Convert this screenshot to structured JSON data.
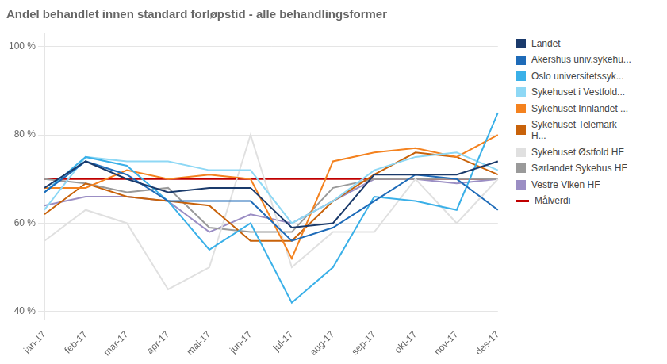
{
  "chart_data": {
    "type": "line",
    "title": "Andel behandlet innen standard forløpstid - alle behandlingsformer",
    "categories": [
      "jan-17",
      "feb-17",
      "mar-17",
      "apr-17",
      "mai-17",
      "jun-17",
      "jul-17",
      "aug-17",
      "sep-17",
      "okt-17",
      "nov-17",
      "des-17"
    ],
    "series": [
      {
        "name": "Landet",
        "color": "#1a3a6b",
        "values": [
          68,
          74,
          70,
          67,
          68,
          68,
          59,
          60,
          71,
          71,
          71,
          74
        ]
      },
      {
        "name": "Akershus univ.sykehu...",
        "color": "#1e6bb8",
        "values": [
          67,
          74,
          71,
          65,
          65,
          65,
          56,
          59,
          65,
          71,
          70,
          63
        ]
      },
      {
        "name": "Oslo universitetssyk...",
        "color": "#3ab0e8",
        "values": [
          67,
          75,
          73,
          65,
          54,
          60,
          42,
          50,
          66,
          65,
          63,
          85
        ]
      },
      {
        "name": "Sykehuset i Vestfold...",
        "color": "#8ed8f5",
        "values": [
          63,
          75,
          74,
          74,
          72,
          72,
          60,
          65,
          72,
          75,
          76,
          72
        ]
      },
      {
        "name": "Sykehuset Innlandet ...",
        "color": "#f4821f",
        "values": [
          68,
          68,
          72,
          70,
          71,
          70,
          52,
          74,
          76,
          77,
          75,
          80
        ]
      },
      {
        "name": "Sykehuset Telemark\nH...",
        "color": "#c8620a",
        "values": [
          62,
          69,
          66,
          65,
          64,
          56,
          56,
          65,
          71,
          76,
          75,
          71
        ]
      },
      {
        "name": "Sykehuset Østfold HF",
        "color": "#e0e0e0",
        "values": [
          56,
          63,
          60,
          45,
          50,
          80,
          50,
          58,
          58,
          70,
          60,
          70
        ]
      },
      {
        "name": "Sørlandet Sykehus HF",
        "color": "#9a9a9a",
        "values": [
          70,
          69,
          67,
          68,
          59,
          58,
          58,
          68,
          70,
          70,
          70,
          70
        ]
      },
      {
        "name": "Vestre Viken HF",
        "color": "#9b8ec4",
        "values": [
          64,
          66,
          66,
          65,
          58,
          62,
          60,
          65,
          70,
          70,
          69,
          70
        ]
      }
    ],
    "target": {
      "name": "Målverdi",
      "value": 70,
      "color": "#c00000"
    },
    "ylim": [
      38,
      103
    ],
    "yticks": [
      {
        "value": 40,
        "label": "40 %"
      },
      {
        "value": 60,
        "label": "60 %"
      },
      {
        "value": 80,
        "label": "80 %"
      },
      {
        "value": 100,
        "label": "100 %"
      }
    ],
    "grid": true,
    "legend": "right"
  }
}
